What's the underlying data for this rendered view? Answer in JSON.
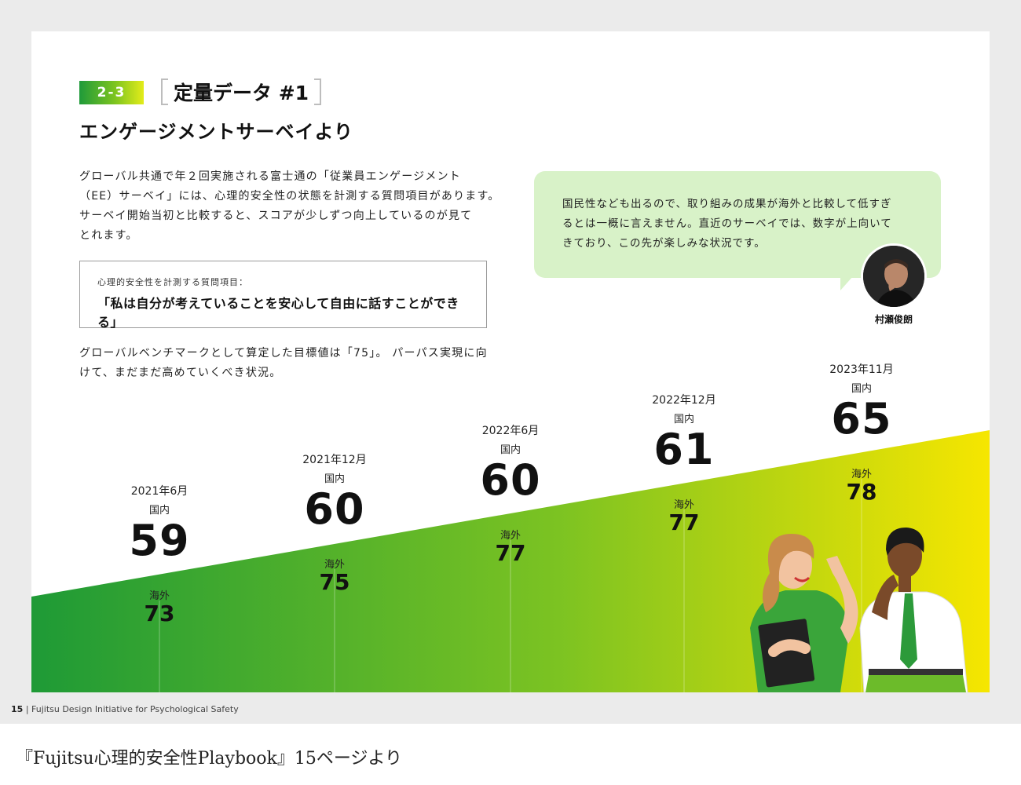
{
  "section": {
    "number": "2-3",
    "title": "定量データ #1"
  },
  "subtitle": "エンゲージメントサーベイより",
  "intro": {
    "line1": "グローバル共通で年２回実施される富士通の「従業員エンゲージメント",
    "line2": "（EE）サーベイ」には、心理的安全性の状態を計測する質問項目があります。",
    "line3": "サーベイ開始当初と比較すると、スコアが少しずつ向上しているのが見て",
    "line4": "とれます。"
  },
  "question_box": {
    "label": "心理的安全性を計測する質問項目：",
    "text": "「私は自分が考えていることを安心して自由に話すことができる」"
  },
  "benchmark": {
    "line1": "グローバルベンチマークとして算定した目標値は「75」。 パーパス実現に向",
    "line2": "けて、まだまだ高めていくべき状況。"
  },
  "quote": {
    "line1": "国民性なども出るので、取り組みの成果が海外と比較して低すぎ",
    "line2": "るとは一概に言えません。直近のサーベイでは、数字が上向いて",
    "line3": "きており、この先が楽しみな状況です。",
    "person": "村瀬俊朗"
  },
  "chart_data": {
    "type": "table",
    "categories": [
      "2021年6月",
      "2021年12月",
      "2022年6月",
      "2022年12月",
      "2023年11月"
    ],
    "series": [
      {
        "name": "国内",
        "values": [
          59,
          60,
          60,
          61,
          65
        ]
      },
      {
        "name": "海外",
        "values": [
          73,
          75,
          77,
          77,
          78
        ]
      }
    ],
    "points": [
      {
        "date": "2021年6月",
        "domestic_label": "国内",
        "domestic": "59",
        "overseas_label": "海外",
        "overseas": "73"
      },
      {
        "date": "2021年12月",
        "domestic_label": "国内",
        "domestic": "60",
        "overseas_label": "海外",
        "overseas": "75"
      },
      {
        "date": "2022年6月",
        "domestic_label": "国内",
        "domestic": "60",
        "overseas_label": "海外",
        "overseas": "77"
      },
      {
        "date": "2022年12月",
        "domestic_label": "国内",
        "domestic": "61",
        "overseas_label": "海外",
        "overseas": "77"
      },
      {
        "date": "2023年11月",
        "domestic_label": "国内",
        "domestic": "65",
        "overseas_label": "海外",
        "overseas": "78"
      }
    ],
    "gradient_colors": [
      "#1e9a36",
      "#7cc322",
      "#f6e600"
    ]
  },
  "footer": {
    "page": "15",
    "text": "Fujitsu Design Initiative for Psychological Safety"
  },
  "caption": "『Fujitsu心理的安全性Playbook』15ページより"
}
